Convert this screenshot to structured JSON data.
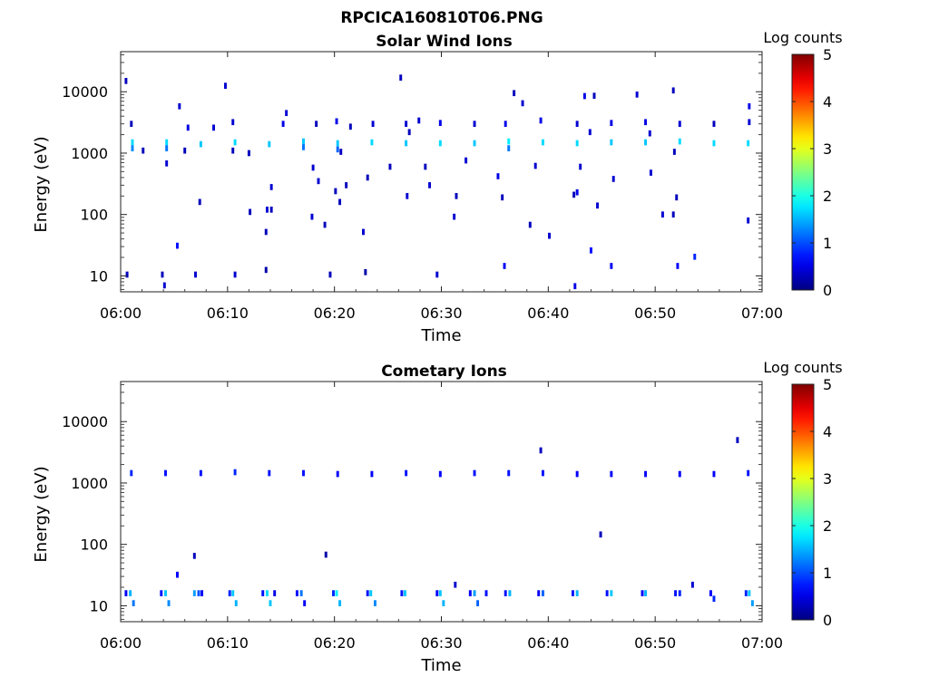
{
  "figure_title": "RPCICA160810T06.PNG",
  "chart_data": [
    {
      "type": "heatmap",
      "title": "Solar Wind Ions",
      "xlabel": "Time",
      "ylabel": "Energy (eV)",
      "x_ticks": [
        "06:00",
        "06:10",
        "06:20",
        "06:30",
        "06:40",
        "06:50",
        "07:00"
      ],
      "x_range_minutes": [
        0,
        60
      ],
      "y_scale": "log",
      "y_range": [
        5.5,
        45000
      ],
      "y_ticks": [
        "10",
        "100",
        "1000",
        "10000"
      ],
      "colorbar": {
        "label": "Log counts",
        "ticks": [
          "0",
          "1",
          "2",
          "3",
          "4",
          "5"
        ],
        "range": [
          0,
          5
        ],
        "colormap": "jet"
      },
      "cells": [
        [
          1.1,
          1500,
          1.7
        ],
        [
          1.1,
          1200,
          1.3
        ],
        [
          4.3,
          1500,
          1.7
        ],
        [
          4.3,
          1200,
          1.2
        ],
        [
          7.5,
          1400,
          1.6
        ],
        [
          10.7,
          1500,
          1.7
        ],
        [
          13.9,
          1400,
          1.6
        ],
        [
          17.1,
          1550,
          1.6
        ],
        [
          17.1,
          1250,
          1.2
        ],
        [
          20.3,
          1450,
          1.6
        ],
        [
          20.3,
          1150,
          1.1
        ],
        [
          23.5,
          1500,
          1.7
        ],
        [
          26.7,
          1450,
          1.6
        ],
        [
          29.9,
          1450,
          1.7
        ],
        [
          33.1,
          1450,
          1.6
        ],
        [
          36.3,
          1550,
          1.8
        ],
        [
          36.3,
          1200,
          1.2
        ],
        [
          39.5,
          1500,
          1.7
        ],
        [
          42.7,
          1450,
          1.7
        ],
        [
          45.9,
          1500,
          1.6
        ],
        [
          49.1,
          1500,
          1.6
        ],
        [
          52.3,
          1550,
          1.7
        ],
        [
          55.5,
          1450,
          1.7
        ],
        [
          58.7,
          1450,
          1.7
        ],
        [
          0.6,
          10.5,
          0.3
        ],
        [
          3.9,
          10.5,
          0.3
        ],
        [
          7.0,
          10.5,
          0.4
        ],
        [
          10.7,
          10.5,
          0.4
        ],
        [
          13.6,
          12.5,
          0.2
        ],
        [
          19.6,
          10.5,
          0.3
        ],
        [
          22.9,
          11.5,
          0.2
        ],
        [
          29.6,
          10.5,
          0.4
        ],
        [
          35.9,
          14.5,
          0.6
        ],
        [
          45.9,
          14.5,
          0.6
        ],
        [
          52.1,
          14.5,
          0.6
        ],
        [
          53.7,
          20.5,
          0.8
        ],
        [
          44.0,
          26,
          0.7
        ],
        [
          5.3,
          31,
          0.7
        ],
        [
          42.5,
          6.8,
          0.5
        ],
        [
          4.1,
          7.0,
          0.4
        ],
        [
          0.5,
          15000,
          0.3
        ],
        [
          9.8,
          12500,
          0.4
        ],
        [
          26.2,
          17000,
          0.3
        ],
        [
          36.8,
          9500,
          0.3
        ],
        [
          37.6,
          6500,
          0.4
        ],
        [
          51.7,
          10500,
          0.3
        ],
        [
          48.3,
          9000,
          0.4
        ],
        [
          43.4,
          8500,
          0.5
        ],
        [
          44.3,
          8600,
          0.3
        ],
        [
          5.5,
          5800,
          0.4
        ],
        [
          15.5,
          4500,
          0.4
        ],
        [
          58.8,
          5800,
          0.5
        ],
        [
          1.0,
          3000,
          0.3
        ],
        [
          10.5,
          3200,
          0.4
        ],
        [
          15.2,
          3000,
          0.5
        ],
        [
          18.3,
          3000,
          0.3
        ],
        [
          20.2,
          3300,
          0.5
        ],
        [
          21.5,
          2700,
          0.3
        ],
        [
          23.6,
          3000,
          0.4
        ],
        [
          26.7,
          3000,
          0.4
        ],
        [
          27.9,
          3400,
          0.4
        ],
        [
          29.9,
          3100,
          0.5
        ],
        [
          33.1,
          3000,
          0.4
        ],
        [
          36.0,
          3000,
          0.5
        ],
        [
          39.3,
          3400,
          0.5
        ],
        [
          42.7,
          3000,
          0.4
        ],
        [
          45.9,
          3100,
          0.5
        ],
        [
          49.1,
          3200,
          0.5
        ],
        [
          52.3,
          3000,
          0.4
        ],
        [
          55.5,
          3000,
          0.3
        ],
        [
          58.8,
          3200,
          0.4
        ],
        [
          6.3,
          2600,
          0.5
        ],
        [
          8.7,
          2600,
          0.4
        ],
        [
          27.0,
          2200,
          0.3
        ],
        [
          43.9,
          2200,
          0.4
        ],
        [
          49.5,
          2100,
          0.4
        ],
        [
          2.1,
          1100,
          0.3
        ],
        [
          4.3,
          680,
          0.4
        ],
        [
          10.5,
          1100,
          0.3
        ],
        [
          20.6,
          1050,
          0.3
        ],
        [
          18.0,
          580,
          0.4
        ],
        [
          18.5,
          350,
          0.4
        ],
        [
          25.2,
          600,
          0.3
        ],
        [
          28.5,
          600,
          0.3
        ],
        [
          32.3,
          760,
          0.4
        ],
        [
          38.8,
          620,
          0.4
        ],
        [
          43.0,
          600,
          0.4
        ],
        [
          46.1,
          380,
          0.4
        ],
        [
          49.6,
          480,
          0.4
        ],
        [
          51.8,
          1050,
          0.3
        ],
        [
          14.1,
          280,
          0.4
        ],
        [
          20.1,
          240,
          0.3
        ],
        [
          21.1,
          300,
          0.3
        ],
        [
          23.1,
          400,
          0.3
        ],
        [
          26.8,
          200,
          0.4
        ],
        [
          28.9,
          300,
          0.4
        ],
        [
          31.4,
          200,
          0.3
        ],
        [
          35.3,
          420,
          0.5
        ],
        [
          35.7,
          190,
          0.3
        ],
        [
          42.4,
          210,
          0.3
        ],
        [
          42.7,
          230,
          0.5
        ],
        [
          44.6,
          140,
          0.4
        ],
        [
          52.0,
          190,
          0.3
        ],
        [
          7.4,
          160,
          0.3
        ],
        [
          12.1,
          110,
          0.3
        ],
        [
          13.7,
          120,
          0.4
        ],
        [
          14.1,
          120,
          0.3
        ],
        [
          13.6,
          52,
          0.3
        ],
        [
          17.9,
          92,
          0.4
        ],
        [
          19.1,
          68,
          0.3
        ],
        [
          20.5,
          160,
          0.3
        ],
        [
          22.7,
          52,
          0.4
        ],
        [
          31.2,
          92,
          0.4
        ],
        [
          38.3,
          68,
          0.3
        ],
        [
          40.1,
          45,
          0.4
        ],
        [
          50.7,
          100,
          0.4
        ],
        [
          51.7,
          100,
          0.3
        ],
        [
          58.7,
          80,
          0.4
        ],
        [
          6.0,
          1100,
          0.3
        ],
        [
          12.0,
          1000,
          0.3
        ]
      ]
    },
    {
      "type": "heatmap",
      "title": "Cometary Ions",
      "xlabel": "Time",
      "ylabel": "Energy (eV)",
      "x_ticks": [
        "06:00",
        "06:10",
        "06:20",
        "06:30",
        "06:40",
        "06:50",
        "07:00"
      ],
      "x_range_minutes": [
        0,
        60
      ],
      "y_scale": "log",
      "y_range": [
        5.5,
        45000
      ],
      "y_ticks": [
        "10",
        "100",
        "1000",
        "10000"
      ],
      "colorbar": {
        "label": "Log counts",
        "ticks": [
          "0",
          "1",
          "2",
          "3",
          "4",
          "5"
        ],
        "range": [
          0,
          5
        ],
        "colormap": "jet"
      },
      "cells": [
        [
          1.0,
          1450,
          0.8
        ],
        [
          4.2,
          1450,
          0.7
        ],
        [
          7.5,
          1450,
          0.7
        ],
        [
          10.7,
          1500,
          0.8
        ],
        [
          13.9,
          1450,
          0.7
        ],
        [
          17.1,
          1450,
          0.7
        ],
        [
          20.3,
          1400,
          0.6
        ],
        [
          23.5,
          1400,
          0.6
        ],
        [
          26.7,
          1450,
          0.7
        ],
        [
          29.9,
          1400,
          0.6
        ],
        [
          33.1,
          1450,
          0.7
        ],
        [
          36.3,
          1450,
          0.7
        ],
        [
          39.5,
          1450,
          0.7
        ],
        [
          42.7,
          1400,
          0.6
        ],
        [
          45.9,
          1400,
          0.6
        ],
        [
          49.1,
          1400,
          0.6
        ],
        [
          52.3,
          1400,
          0.6
        ],
        [
          55.5,
          1400,
          0.6
        ],
        [
          58.7,
          1450,
          0.7
        ],
        [
          39.3,
          3400,
          0.3
        ],
        [
          57.7,
          5000,
          0.3
        ],
        [
          6.9,
          65,
          0.3
        ],
        [
          19.2,
          68,
          0.2
        ],
        [
          44.9,
          145,
          0.3
        ],
        [
          5.3,
          32,
          0.6
        ],
        [
          31.3,
          22,
          0.4
        ],
        [
          53.5,
          22,
          0.4
        ],
        [
          0.5,
          16,
          0.6
        ],
        [
          0.9,
          16,
          1.5
        ],
        [
          1.2,
          11,
          1.2
        ],
        [
          3.8,
          16,
          0.7
        ],
        [
          4.2,
          16,
          1.6
        ],
        [
          4.5,
          11,
          1.3
        ],
        [
          6.9,
          16,
          1.4
        ],
        [
          7.3,
          16,
          1.0
        ],
        [
          7.6,
          16,
          0.6
        ],
        [
          10.2,
          16,
          0.8
        ],
        [
          10.5,
          16,
          1.6
        ],
        [
          10.8,
          11,
          1.5
        ],
        [
          13.3,
          16,
          0.7
        ],
        [
          13.7,
          16,
          1.7
        ],
        [
          14.0,
          11,
          1.6
        ],
        [
          14.4,
          16,
          0.5
        ],
        [
          16.5,
          16,
          0.7
        ],
        [
          16.9,
          16,
          1.2
        ],
        [
          17.2,
          11,
          0.6
        ],
        [
          19.9,
          16,
          0.8
        ],
        [
          20.2,
          16,
          1.8
        ],
        [
          20.5,
          11,
          1.5
        ],
        [
          23.1,
          16,
          0.7
        ],
        [
          23.4,
          16,
          1.6
        ],
        [
          23.8,
          11,
          1.3
        ],
        [
          26.3,
          16,
          0.7
        ],
        [
          26.6,
          16,
          1.6
        ],
        [
          29.6,
          16,
          0.6
        ],
        [
          29.9,
          16,
          1.6
        ],
        [
          30.2,
          11,
          1.5
        ],
        [
          32.7,
          16,
          0.6
        ],
        [
          33.1,
          16,
          1.4
        ],
        [
          33.4,
          11,
          1.1
        ],
        [
          34.2,
          16,
          0.7
        ],
        [
          36.0,
          16,
          0.7
        ],
        [
          36.4,
          16,
          1.5
        ],
        [
          39.1,
          16,
          0.6
        ],
        [
          39.5,
          16,
          1.1
        ],
        [
          42.3,
          16,
          0.7
        ],
        [
          42.7,
          16,
          1.5
        ],
        [
          45.5,
          16,
          0.7
        ],
        [
          45.9,
          16,
          1.6
        ],
        [
          48.8,
          16,
          0.6
        ],
        [
          49.1,
          16,
          1.5
        ],
        [
          51.9,
          16,
          0.7
        ],
        [
          52.3,
          16,
          0.8
        ],
        [
          55.2,
          16,
          0.6
        ],
        [
          55.5,
          13,
          0.8
        ],
        [
          58.5,
          16,
          0.8
        ],
        [
          58.8,
          16,
          1.6
        ],
        [
          59.1,
          11,
          1.4
        ]
      ]
    }
  ]
}
